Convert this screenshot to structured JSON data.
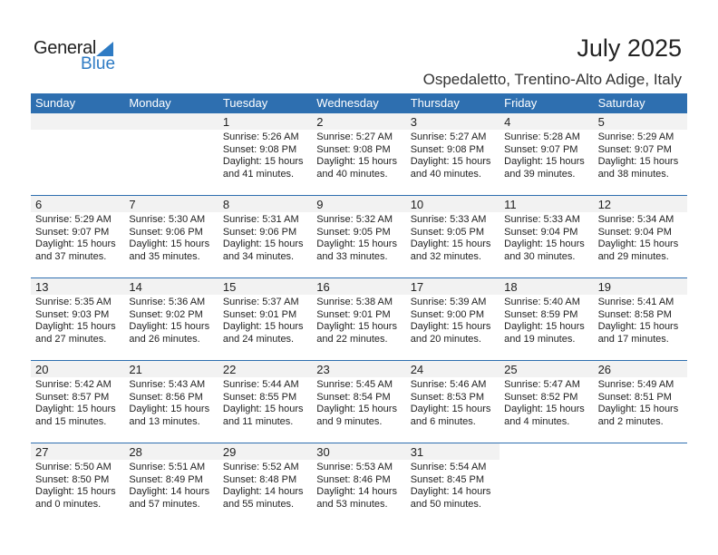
{
  "logo": {
    "line1": "General",
    "line2": "Blue"
  },
  "header": {
    "title": "July 2025",
    "location": "Ospedaletto, Trentino-Alto Adige, Italy"
  },
  "colors": {
    "accent": "#2e6fb0",
    "logo_blue": "#2e7bc4",
    "day_band": "#f2f2f2"
  },
  "weekdays": [
    "Sunday",
    "Monday",
    "Tuesday",
    "Wednesday",
    "Thursday",
    "Friday",
    "Saturday"
  ],
  "weeks": [
    [
      null,
      null,
      {
        "day": "1",
        "sunrise": "Sunrise: 5:26 AM",
        "sunset": "Sunset: 9:08 PM",
        "daylight1": "Daylight: 15 hours",
        "daylight2": "and 41 minutes."
      },
      {
        "day": "2",
        "sunrise": "Sunrise: 5:27 AM",
        "sunset": "Sunset: 9:08 PM",
        "daylight1": "Daylight: 15 hours",
        "daylight2": "and 40 minutes."
      },
      {
        "day": "3",
        "sunrise": "Sunrise: 5:27 AM",
        "sunset": "Sunset: 9:08 PM",
        "daylight1": "Daylight: 15 hours",
        "daylight2": "and 40 minutes."
      },
      {
        "day": "4",
        "sunrise": "Sunrise: 5:28 AM",
        "sunset": "Sunset: 9:07 PM",
        "daylight1": "Daylight: 15 hours",
        "daylight2": "and 39 minutes."
      },
      {
        "day": "5",
        "sunrise": "Sunrise: 5:29 AM",
        "sunset": "Sunset: 9:07 PM",
        "daylight1": "Daylight: 15 hours",
        "daylight2": "and 38 minutes."
      }
    ],
    [
      {
        "day": "6",
        "sunrise": "Sunrise: 5:29 AM",
        "sunset": "Sunset: 9:07 PM",
        "daylight1": "Daylight: 15 hours",
        "daylight2": "and 37 minutes."
      },
      {
        "day": "7",
        "sunrise": "Sunrise: 5:30 AM",
        "sunset": "Sunset: 9:06 PM",
        "daylight1": "Daylight: 15 hours",
        "daylight2": "and 35 minutes."
      },
      {
        "day": "8",
        "sunrise": "Sunrise: 5:31 AM",
        "sunset": "Sunset: 9:06 PM",
        "daylight1": "Daylight: 15 hours",
        "daylight2": "and 34 minutes."
      },
      {
        "day": "9",
        "sunrise": "Sunrise: 5:32 AM",
        "sunset": "Sunset: 9:05 PM",
        "daylight1": "Daylight: 15 hours",
        "daylight2": "and 33 minutes."
      },
      {
        "day": "10",
        "sunrise": "Sunrise: 5:33 AM",
        "sunset": "Sunset: 9:05 PM",
        "daylight1": "Daylight: 15 hours",
        "daylight2": "and 32 minutes."
      },
      {
        "day": "11",
        "sunrise": "Sunrise: 5:33 AM",
        "sunset": "Sunset: 9:04 PM",
        "daylight1": "Daylight: 15 hours",
        "daylight2": "and 30 minutes."
      },
      {
        "day": "12",
        "sunrise": "Sunrise: 5:34 AM",
        "sunset": "Sunset: 9:04 PM",
        "daylight1": "Daylight: 15 hours",
        "daylight2": "and 29 minutes."
      }
    ],
    [
      {
        "day": "13",
        "sunrise": "Sunrise: 5:35 AM",
        "sunset": "Sunset: 9:03 PM",
        "daylight1": "Daylight: 15 hours",
        "daylight2": "and 27 minutes."
      },
      {
        "day": "14",
        "sunrise": "Sunrise: 5:36 AM",
        "sunset": "Sunset: 9:02 PM",
        "daylight1": "Daylight: 15 hours",
        "daylight2": "and 26 minutes."
      },
      {
        "day": "15",
        "sunrise": "Sunrise: 5:37 AM",
        "sunset": "Sunset: 9:01 PM",
        "daylight1": "Daylight: 15 hours",
        "daylight2": "and 24 minutes."
      },
      {
        "day": "16",
        "sunrise": "Sunrise: 5:38 AM",
        "sunset": "Sunset: 9:01 PM",
        "daylight1": "Daylight: 15 hours",
        "daylight2": "and 22 minutes."
      },
      {
        "day": "17",
        "sunrise": "Sunrise: 5:39 AM",
        "sunset": "Sunset: 9:00 PM",
        "daylight1": "Daylight: 15 hours",
        "daylight2": "and 20 minutes."
      },
      {
        "day": "18",
        "sunrise": "Sunrise: 5:40 AM",
        "sunset": "Sunset: 8:59 PM",
        "daylight1": "Daylight: 15 hours",
        "daylight2": "and 19 minutes."
      },
      {
        "day": "19",
        "sunrise": "Sunrise: 5:41 AM",
        "sunset": "Sunset: 8:58 PM",
        "daylight1": "Daylight: 15 hours",
        "daylight2": "and 17 minutes."
      }
    ],
    [
      {
        "day": "20",
        "sunrise": "Sunrise: 5:42 AM",
        "sunset": "Sunset: 8:57 PM",
        "daylight1": "Daylight: 15 hours",
        "daylight2": "and 15 minutes."
      },
      {
        "day": "21",
        "sunrise": "Sunrise: 5:43 AM",
        "sunset": "Sunset: 8:56 PM",
        "daylight1": "Daylight: 15 hours",
        "daylight2": "and 13 minutes."
      },
      {
        "day": "22",
        "sunrise": "Sunrise: 5:44 AM",
        "sunset": "Sunset: 8:55 PM",
        "daylight1": "Daylight: 15 hours",
        "daylight2": "and 11 minutes."
      },
      {
        "day": "23",
        "sunrise": "Sunrise: 5:45 AM",
        "sunset": "Sunset: 8:54 PM",
        "daylight1": "Daylight: 15 hours",
        "daylight2": "and 9 minutes."
      },
      {
        "day": "24",
        "sunrise": "Sunrise: 5:46 AM",
        "sunset": "Sunset: 8:53 PM",
        "daylight1": "Daylight: 15 hours",
        "daylight2": "and 6 minutes."
      },
      {
        "day": "25",
        "sunrise": "Sunrise: 5:47 AM",
        "sunset": "Sunset: 8:52 PM",
        "daylight1": "Daylight: 15 hours",
        "daylight2": "and 4 minutes."
      },
      {
        "day": "26",
        "sunrise": "Sunrise: 5:49 AM",
        "sunset": "Sunset: 8:51 PM",
        "daylight1": "Daylight: 15 hours",
        "daylight2": "and 2 minutes."
      }
    ],
    [
      {
        "day": "27",
        "sunrise": "Sunrise: 5:50 AM",
        "sunset": "Sunset: 8:50 PM",
        "daylight1": "Daylight: 15 hours",
        "daylight2": "and 0 minutes."
      },
      {
        "day": "28",
        "sunrise": "Sunrise: 5:51 AM",
        "sunset": "Sunset: 8:49 PM",
        "daylight1": "Daylight: 14 hours",
        "daylight2": "and 57 minutes."
      },
      {
        "day": "29",
        "sunrise": "Sunrise: 5:52 AM",
        "sunset": "Sunset: 8:48 PM",
        "daylight1": "Daylight: 14 hours",
        "daylight2": "and 55 minutes."
      },
      {
        "day": "30",
        "sunrise": "Sunrise: 5:53 AM",
        "sunset": "Sunset: 8:46 PM",
        "daylight1": "Daylight: 14 hours",
        "daylight2": "and 53 minutes."
      },
      {
        "day": "31",
        "sunrise": "Sunrise: 5:54 AM",
        "sunset": "Sunset: 8:45 PM",
        "daylight1": "Daylight: 14 hours",
        "daylight2": "and 50 minutes."
      },
      null,
      null
    ]
  ]
}
